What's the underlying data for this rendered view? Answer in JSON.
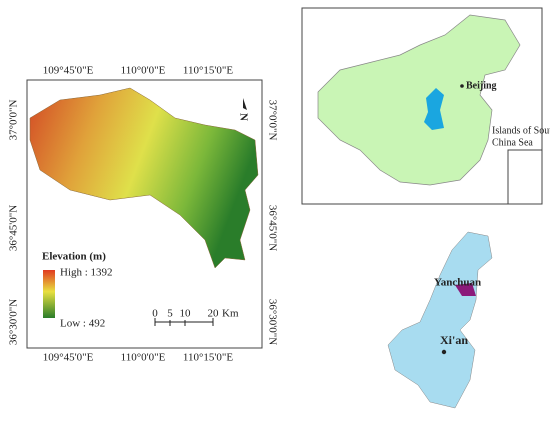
{
  "map": {
    "longitude_labels": [
      "109°45'0\"E",
      "110°0'0\"E",
      "110°15'0\"E"
    ],
    "latitude_labels": [
      "37°0'0\"N",
      "36°45'0\"N",
      "36°30'0\"N"
    ],
    "north_arrow": "N",
    "legend": {
      "title": "Elevation (m)",
      "high": "High : 1392",
      "low": "Low : 492"
    },
    "scale_bar": {
      "ticks": [
        "0",
        "5",
        "10",
        "20"
      ],
      "unit": "Km"
    }
  },
  "inset_china": {
    "beijing": "Beijing",
    "islands": [
      "Islands of South",
      "China Sea"
    ]
  },
  "inset_shaanxi": {
    "county": "Yanchuan",
    "city": "Xi'an"
  }
}
